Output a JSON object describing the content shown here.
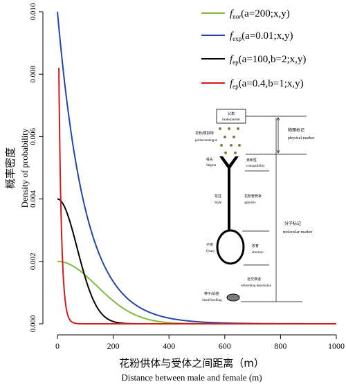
{
  "chart_data": {
    "type": "line",
    "xlabel_cn": "花粉供体与受体之间距离（m）",
    "xlabel_en": "Distance between male and female (m)",
    "ylabel_cn": "概率密度",
    "ylabel_en": "Density of probability",
    "xlim": [
      0,
      1000
    ],
    "ylim": [
      0,
      0.01
    ],
    "x_ticks": [
      0,
      200,
      400,
      600,
      800,
      1000
    ],
    "x_tick_labels": [
      "0",
      "200",
      "400",
      "600",
      "800",
      "1000"
    ],
    "y_ticks": [
      0,
      0.002,
      0.004,
      0.006,
      0.008,
      0.01
    ],
    "y_tick_labels": [
      "0.000",
      "0.002",
      "0.004",
      "0.006",
      "0.008",
      "0.010"
    ],
    "legend_position": "top-right",
    "series": [
      {
        "name": "f_nor(a=200;x,y)",
        "fn": "nor",
        "color": "#7dbb3c",
        "legend_sym": "f",
        "legend_sub": "nor",
        "legend_rest": "(a=200;x,y)",
        "x": [
          0,
          50,
          100,
          150,
          200,
          250,
          300,
          400,
          500,
          600,
          800,
          1000
        ],
        "y": [
          0.002,
          0.00194,
          0.00176,
          0.00151,
          0.00121,
          0.00092,
          0.00065,
          0.00027,
          9e-05,
          2e-05,
          0.0,
          0.0
        ]
      },
      {
        "name": "f_exp(a=0.01;x,y)",
        "fn": "exp",
        "color": "#1f45a8",
        "legend_sym": "f",
        "legend_sub": "exp",
        "legend_rest": "(a=0.01;x,y)",
        "x": [
          0,
          50,
          100,
          150,
          200,
          250,
          300,
          400,
          500,
          600,
          800,
          1000
        ],
        "y": [
          0.01,
          0.00607,
          0.00368,
          0.00223,
          0.00135,
          0.00082,
          0.0005,
          0.00018,
          7e-05,
          2e-05,
          0.0,
          0.0
        ]
      },
      {
        "name": "f_ep(a=100,b=2;x,y)",
        "fn": "ep2",
        "color": "#000000",
        "legend_sym": "f",
        "legend_sub": "ep",
        "legend_rest": "(a=100,b=2;x,y)",
        "x": [
          0,
          25,
          50,
          75,
          100,
          150,
          200,
          250,
          300,
          400,
          600,
          1000
        ],
        "y": [
          0.004,
          0.00376,
          0.00311,
          0.00228,
          0.00147,
          0.00042,
          7e-05,
          1e-05,
          0.0,
          0.0,
          0.0,
          0.0
        ]
      },
      {
        "name": "f_ep(a=0.4,b=1;x,y)",
        "fn": "ep1",
        "color": "#d7191c",
        "legend_sym": "f",
        "legend_sub": "ep",
        "legend_rest": "(a=0.4,b=1;x,y)",
        "x": [
          5,
          10,
          15,
          20,
          30,
          40,
          60,
          100,
          200,
          400,
          1000
        ],
        "y": [
          0.0082,
          0.0047,
          0.003,
          0.002,
          0.00095,
          0.00045,
          0.0001,
          0.0,
          0.0,
          0.0,
          0.0
        ]
      }
    ]
  },
  "inset_diagram": {
    "male_parent_cn": "父本",
    "male_parent_en": "male parent",
    "pollen_cn": "花粉/模拟物",
    "pollen_en": "pollen/analogue",
    "stigma_cn": "柱头",
    "stigma_en": "Stigma",
    "compat_cn": "亲和性",
    "compat_en": "compatibility",
    "style_cn": "花柱",
    "style_en": "Style",
    "agonists_cn": "花粉管竞争",
    "agonists_en": "agonists",
    "ovary_cn": "子房",
    "ovary_en": "Ovary",
    "abortion_cn": "败育",
    "abortion_en": "abortion",
    "inbreeding_cn": "近交衰退",
    "inbreeding_en": "inbreeding depression",
    "seed_cn": "种子/幼苗",
    "seed_en": "Seed/Seedling",
    "physical_cn": "物理标记",
    "physical_en": "physical marker",
    "molecular_cn": "分子标记",
    "molecular_en": "molecular marker"
  }
}
